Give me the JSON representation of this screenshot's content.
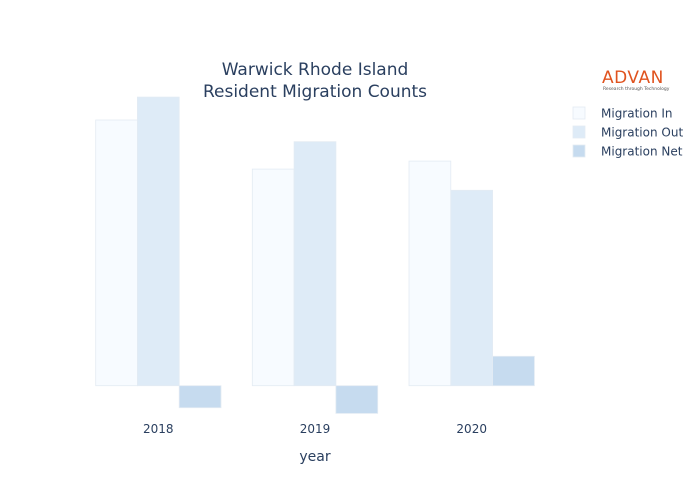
{
  "logo": {
    "name": "ADVAN",
    "tagline": "Research through Technology"
  },
  "chart_data": {
    "type": "bar",
    "title_lines": [
      "Warwick Rhode Island",
      "Resident Migration Counts"
    ],
    "xlabel": "year",
    "ylabel": "",
    "categories": [
      "2018",
      "2019",
      "2020"
    ],
    "ylim": [
      -1200,
      10000
    ],
    "grid": false,
    "legend_position": "top-right",
    "series": [
      {
        "name": "Migration In",
        "color": "#f7fbff",
        "values": [
          9300,
          7580,
          7860
        ]
      },
      {
        "name": "Migration Out",
        "color": "#deebf7",
        "values": [
          10100,
          8540,
          6840
        ]
      },
      {
        "name": "Migration Net",
        "color": "#c6dbef",
        "values": [
          -770,
          -970,
          1030
        ]
      }
    ]
  }
}
